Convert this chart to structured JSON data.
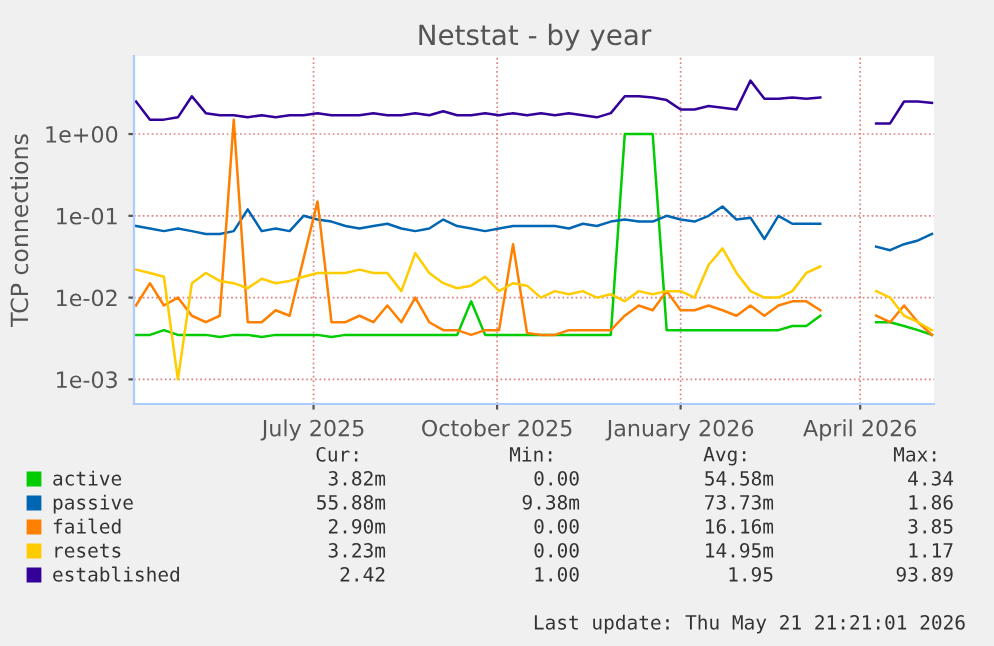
{
  "chart_data": {
    "type": "line",
    "title": "Netstat - by year",
    "ylabel": "TCP connections",
    "x": [
      "2025-04-03",
      "2025-04-10",
      "2025-04-17",
      "2025-04-24",
      "2025-05-01",
      "2025-05-08",
      "2025-05-15",
      "2025-05-22",
      "2025-05-29",
      "2025-06-05",
      "2025-06-12",
      "2025-06-19",
      "2025-06-26",
      "2025-07-03",
      "2025-07-10",
      "2025-07-17",
      "2025-07-24",
      "2025-07-31",
      "2025-08-07",
      "2025-08-14",
      "2025-08-21",
      "2025-08-28",
      "2025-09-04",
      "2025-09-11",
      "2025-09-18",
      "2025-09-25",
      "2025-10-02",
      "2025-10-09",
      "2025-10-16",
      "2025-10-23",
      "2025-10-30",
      "2025-11-06",
      "2025-11-13",
      "2025-11-20",
      "2025-11-27",
      "2025-12-04",
      "2025-12-11",
      "2025-12-18",
      "2025-12-25",
      "2026-01-01",
      "2026-01-08",
      "2026-01-15",
      "2026-01-22",
      "2026-01-29",
      "2026-02-05",
      "2026-02-12",
      "2026-02-19",
      "2026-02-26",
      "2026-03-05",
      "2026-03-12",
      "2026-03-19",
      "2026-03-26",
      "2026-04-02",
      "2026-04-09",
      "2026-04-16",
      "2026-04-23",
      "2026-04-30",
      "2026-05-07"
    ],
    "series": [
      {
        "name": "active",
        "color": "#00cc00",
        "values": [
          0.0035,
          0.0035,
          0.004,
          0.0035,
          0.0035,
          0.0035,
          0.0033,
          0.0035,
          0.0035,
          0.0033,
          0.0035,
          0.0035,
          0.0035,
          0.0035,
          0.0033,
          0.0035,
          0.0035,
          0.0035,
          0.0035,
          0.0035,
          0.0035,
          0.0035,
          0.0035,
          0.0035,
          0.009,
          0.0035,
          0.0035,
          0.0035,
          0.0035,
          0.0035,
          0.0035,
          0.0035,
          0.0035,
          0.0035,
          0.0035,
          1.0,
          1.0,
          1.0,
          0.004,
          0.004,
          0.004,
          0.004,
          0.004,
          0.004,
          0.004,
          0.004,
          0.004,
          0.0045,
          0.0045,
          0.006,
          null,
          null,
          null,
          0.005,
          0.005,
          0.0045,
          0.004,
          0.0035
        ]
      },
      {
        "name": "passive",
        "color": "#0066b3",
        "values": [
          0.075,
          0.07,
          0.065,
          0.07,
          0.065,
          0.06,
          0.06,
          0.065,
          0.12,
          0.065,
          0.07,
          0.065,
          0.1,
          0.09,
          0.085,
          0.075,
          0.07,
          0.075,
          0.08,
          0.07,
          0.065,
          0.07,
          0.09,
          0.075,
          0.07,
          0.065,
          0.07,
          0.075,
          0.075,
          0.075,
          0.075,
          0.07,
          0.08,
          0.075,
          0.085,
          0.09,
          0.085,
          0.085,
          0.1,
          0.09,
          0.085,
          0.1,
          0.13,
          0.09,
          0.095,
          0.052,
          0.1,
          0.08,
          0.08,
          0.08,
          null,
          null,
          null,
          0.042,
          0.038,
          0.045,
          0.05,
          0.06
        ]
      },
      {
        "name": "failed",
        "color": "#ff8000",
        "values": [
          0.008,
          0.015,
          0.008,
          0.01,
          0.006,
          0.005,
          0.006,
          1.5,
          0.005,
          0.005,
          0.007,
          0.006,
          0.03,
          0.15,
          0.005,
          0.005,
          0.006,
          0.005,
          0.008,
          0.005,
          0.01,
          0.005,
          0.004,
          0.004,
          0.0035,
          0.004,
          0.004,
          0.045,
          0.0037,
          0.0035,
          0.0035,
          0.004,
          0.004,
          0.004,
          0.004,
          0.006,
          0.008,
          0.007,
          0.012,
          0.007,
          0.007,
          0.008,
          0.007,
          0.006,
          0.008,
          0.006,
          0.008,
          0.009,
          0.009,
          0.007,
          null,
          null,
          null,
          0.006,
          0.005,
          0.008,
          0.005,
          0.0035
        ]
      },
      {
        "name": "resets",
        "color": "#ffcc00",
        "values": [
          0.022,
          0.02,
          0.018,
          0.001,
          0.015,
          0.02,
          0.016,
          0.015,
          0.013,
          0.017,
          0.015,
          0.016,
          0.018,
          0.02,
          0.02,
          0.02,
          0.022,
          0.02,
          0.02,
          0.012,
          0.035,
          0.02,
          0.015,
          0.013,
          0.014,
          0.018,
          0.012,
          0.015,
          0.014,
          0.01,
          0.012,
          0.011,
          0.012,
          0.01,
          0.011,
          0.009,
          0.012,
          0.011,
          0.012,
          0.012,
          0.01,
          0.025,
          0.04,
          0.02,
          0.012,
          0.01,
          0.01,
          0.012,
          0.02,
          0.024,
          null,
          null,
          null,
          0.012,
          0.01,
          0.006,
          0.005,
          0.004
        ]
      },
      {
        "name": "established",
        "color": "#330099",
        "values": [
          2.5,
          1.5,
          1.5,
          1.6,
          2.9,
          1.8,
          1.7,
          1.7,
          1.6,
          1.7,
          1.6,
          1.7,
          1.7,
          1.8,
          1.7,
          1.7,
          1.7,
          1.8,
          1.7,
          1.7,
          1.8,
          1.7,
          1.9,
          1.7,
          1.7,
          1.8,
          1.7,
          1.8,
          1.7,
          1.8,
          1.7,
          1.8,
          1.7,
          1.6,
          1.8,
          2.9,
          2.9,
          2.8,
          2.6,
          2.0,
          2.0,
          2.2,
          2.1,
          2.0,
          4.5,
          2.7,
          2.7,
          2.8,
          2.7,
          2.8,
          null,
          null,
          null,
          1.35,
          1.35,
          2.5,
          2.5,
          2.4
        ]
      }
    ],
    "log": "y",
    "xlim": [
      "2025-04-02",
      "2026-05-08"
    ],
    "ylim": [
      0.0005,
      9
    ],
    "xticks": [
      {
        "value": "2025-07-01",
        "label": "July 2025"
      },
      {
        "value": "2025-10-01",
        "label": "October 2025"
      },
      {
        "value": "2026-01-01",
        "label": "January 2026"
      },
      {
        "value": "2026-04-01",
        "label": "April 2026"
      }
    ],
    "yticks": [
      {
        "value": 0.001,
        "label": "1e-03"
      },
      {
        "value": 0.01,
        "label": "1e-02"
      },
      {
        "value": 0.1,
        "label": "1e-01"
      },
      {
        "value": 1,
        "label": "1e+00"
      }
    ],
    "grid": true,
    "legend": "bottom",
    "marker": "none",
    "line_style": "solid",
    "annotations": [
      "Cur:",
      "Min:",
      "Avg:",
      "Max:",
      "3.82m",
      "0.00",
      "54.58m",
      "4.34",
      "55.88m",
      "9.38m",
      "73.73m",
      "1.86",
      "2.90m",
      "0.00",
      "16.16m",
      "3.85",
      "3.23m",
      "0.00",
      "14.95m",
      "1.17",
      "2.42",
      "1.00",
      "1.95",
      "93.89",
      "Last update: Thu May 21 21:21:01 2026"
    ]
  }
}
